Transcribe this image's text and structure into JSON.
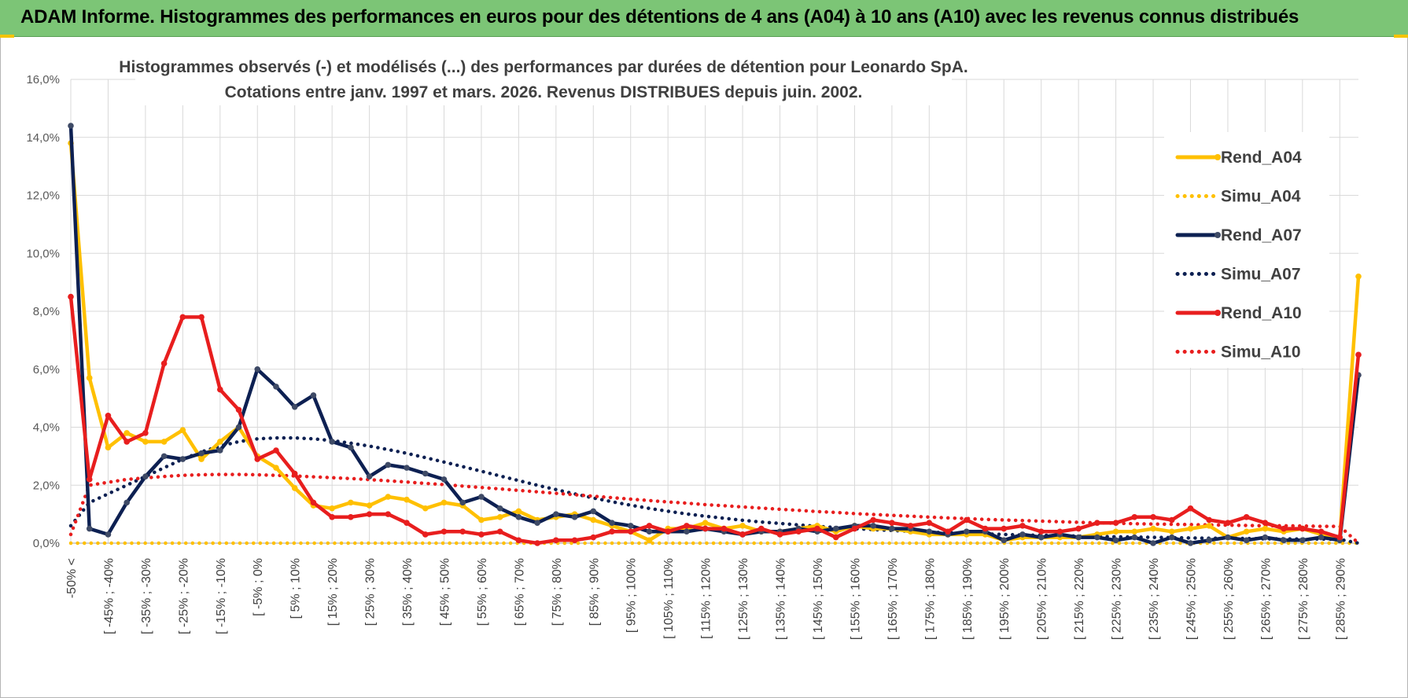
{
  "banner": {
    "title": "ADAM Informe. Histogrammes des performances en euros pour des détentions de 4 ans (A04) à 10 ans (A10) avec les revenus connus distribués"
  },
  "chart_data": {
    "type": "line",
    "title": [
      "Histogrammes observés (-) et modélisés (...) des performances par durées de détention pour Leonardo SpA.",
      "Cotations entre janv. 1997 et mars. 2026. Revenus DISTRIBUES depuis juin. 2002."
    ],
    "xlabel": "",
    "ylabel": "",
    "ylim": [
      0,
      16
    ],
    "y_ticks": [
      "0,0%",
      "2,0%",
      "4,0%",
      "6,0%",
      "8,0%",
      "10,0%",
      "12,0%",
      "14,0%",
      "16,0%"
    ],
    "grid": true,
    "legend_position": "top-right",
    "x_labels_shown": [
      "-50% <",
      "[ -45% ; -40%",
      "[ -35% ; -30%",
      "[ -25% ; -20%",
      "[ -15% ; -10%",
      "[ -5% ; 0%",
      "[ 5% ; 10%",
      "[ 15% ; 20%",
      "[ 25% ; 30%",
      "[ 35% ; 40%",
      "[ 45% ; 50%",
      "[ 55% ; 60%",
      "[ 65% ; 70%",
      "[ 75% ; 80%",
      "[ 85% ; 90%",
      "[ 95% ; 100%",
      "[ 105% ; 110%",
      "[ 115% ; 120%",
      "[ 125% ; 130%",
      "[ 135% ; 140%",
      "[ 145% ; 150%",
      "[ 155% ; 160%",
      "[ 165% ; 170%",
      "[ 175% ; 180%",
      "[ 185% ; 190%",
      "[ 195% ; 200%",
      "[ 205% ; 210%",
      "[ 215% ; 220%",
      "[ 225% ; 230%",
      "[ 235% ; 240%",
      "[ 245% ; 250%",
      "[ 255% ; 260%",
      "[ 265% ; 270%",
      "[ 275% ; 280%",
      "[ 285% ; 290%"
    ],
    "series": [
      {
        "name": "Rend_A04",
        "style": "solid",
        "color": "#ffc000",
        "marker": true,
        "values": [
          13.8,
          5.7,
          3.3,
          3.8,
          3.5,
          3.5,
          3.9,
          2.9,
          3.5,
          4.0,
          3.0,
          2.6,
          1.9,
          1.3,
          1.2,
          1.4,
          1.3,
          1.6,
          1.5,
          1.2,
          1.4,
          1.3,
          0.8,
          0.9,
          1.1,
          0.8,
          0.9,
          1.0,
          0.8,
          0.6,
          0.4,
          0.1,
          0.5,
          0.5,
          0.7,
          0.5,
          0.6,
          0.4,
          0.4,
          0.5,
          0.6,
          0.4,
          0.6,
          0.5,
          0.5,
          0.4,
          0.3,
          0.3,
          0.3,
          0.3,
          0.1,
          0.2,
          0.2,
          0.2,
          0.2,
          0.3,
          0.4,
          0.4,
          0.5,
          0.4,
          0.5,
          0.6,
          0.2,
          0.4,
          0.5,
          0.4,
          0.5,
          0.3,
          0.2,
          9.2
        ]
      },
      {
        "name": "Simu_A04",
        "style": "dotted",
        "color": "#ffc000",
        "marker": false,
        "values": [
          0.0,
          0.0,
          0.0,
          0.0,
          0.0,
          0.0,
          0.0,
          0.0,
          0.0,
          0.0,
          0.0,
          0.0,
          0.0,
          0.0,
          0.0,
          0.0,
          0.0,
          0.0,
          0.0,
          0.0,
          0.0,
          0.0,
          0.0,
          0.0,
          0.0,
          0.0,
          0.0,
          0.0,
          0.0,
          0.0,
          0.0,
          0.0,
          0.0,
          0.0,
          0.0,
          0.0,
          0.0,
          0.0,
          0.0,
          0.0,
          0.0,
          0.0,
          0.0,
          0.0,
          0.0,
          0.0,
          0.0,
          0.0,
          0.0,
          0.0,
          0.0,
          0.0,
          0.0,
          0.0,
          0.0,
          0.0,
          0.0,
          0.0,
          0.0,
          0.0,
          0.0,
          0.0,
          0.0,
          0.0,
          0.0,
          0.0,
          0.0,
          0.0,
          0.0,
          0.0
        ]
      },
      {
        "name": "Rend_A07",
        "style": "solid",
        "color": "#0d2052",
        "marker": true,
        "values": [
          14.4,
          0.5,
          0.3,
          1.4,
          2.3,
          3.0,
          2.9,
          3.1,
          3.2,
          4.0,
          6.0,
          5.4,
          4.7,
          5.1,
          3.5,
          3.3,
          2.3,
          2.7,
          2.6,
          2.4,
          2.2,
          1.4,
          1.6,
          1.2,
          0.9,
          0.7,
          1.0,
          0.9,
          1.1,
          0.7,
          0.6,
          0.4,
          0.4,
          0.4,
          0.5,
          0.4,
          0.3,
          0.4,
          0.4,
          0.5,
          0.4,
          0.5,
          0.6,
          0.6,
          0.5,
          0.5,
          0.4,
          0.3,
          0.4,
          0.4,
          0.1,
          0.3,
          0.2,
          0.3,
          0.2,
          0.2,
          0.1,
          0.2,
          0.0,
          0.2,
          0.0,
          0.1,
          0.2,
          0.1,
          0.2,
          0.1,
          0.1,
          0.2,
          0.1,
          5.8
        ]
      },
      {
        "name": "Simu_A07",
        "style": "dotted",
        "color": "#0d2052",
        "marker": false,
        "values": [
          0.6,
          1.4,
          1.7,
          2.0,
          2.3,
          2.6,
          2.9,
          3.15,
          3.35,
          3.5,
          3.6,
          3.63,
          3.63,
          3.6,
          3.54,
          3.45,
          3.35,
          3.23,
          3.1,
          2.95,
          2.8,
          2.64,
          2.48,
          2.32,
          2.16,
          2.0,
          1.85,
          1.7,
          1.56,
          1.43,
          1.31,
          1.2,
          1.1,
          1.01,
          0.93,
          0.86,
          0.79,
          0.73,
          0.68,
          0.63,
          0.58,
          0.54,
          0.5,
          0.47,
          0.44,
          0.41,
          0.38,
          0.36,
          0.34,
          0.32,
          0.3,
          0.28,
          0.27,
          0.26,
          0.24,
          0.23,
          0.22,
          0.21,
          0.2,
          0.19,
          0.18,
          0.17,
          0.17,
          0.16,
          0.15,
          0.15,
          0.14,
          0.14,
          0.13,
          0.0
        ]
      },
      {
        "name": "Rend_A10",
        "style": "solid",
        "color": "#e81e1e",
        "marker": true,
        "values": [
          8.5,
          2.2,
          4.4,
          3.5,
          3.8,
          6.2,
          7.8,
          7.8,
          5.3,
          4.6,
          2.9,
          3.2,
          2.4,
          1.4,
          0.9,
          0.9,
          1.0,
          1.0,
          0.7,
          0.3,
          0.4,
          0.4,
          0.3,
          0.4,
          0.1,
          0.0,
          0.1,
          0.1,
          0.2,
          0.4,
          0.4,
          0.6,
          0.4,
          0.6,
          0.5,
          0.5,
          0.3,
          0.5,
          0.3,
          0.4,
          0.5,
          0.2,
          0.5,
          0.8,
          0.7,
          0.6,
          0.7,
          0.4,
          0.8,
          0.5,
          0.5,
          0.6,
          0.4,
          0.4,
          0.5,
          0.7,
          0.7,
          0.9,
          0.9,
          0.8,
          1.2,
          0.8,
          0.7,
          0.9,
          0.7,
          0.5,
          0.5,
          0.4,
          0.2,
          6.5
        ]
      },
      {
        "name": "Simu_A10",
        "style": "dotted",
        "color": "#e81e1e",
        "marker": false,
        "values": [
          0.3,
          2.0,
          2.1,
          2.2,
          2.25,
          2.3,
          2.34,
          2.36,
          2.37,
          2.37,
          2.36,
          2.34,
          2.32,
          2.29,
          2.26,
          2.23,
          2.19,
          2.15,
          2.11,
          2.06,
          2.02,
          1.97,
          1.92,
          1.87,
          1.82,
          1.77,
          1.72,
          1.67,
          1.62,
          1.57,
          1.52,
          1.47,
          1.42,
          1.38,
          1.33,
          1.29,
          1.25,
          1.21,
          1.17,
          1.13,
          1.09,
          1.06,
          1.02,
          0.99,
          0.96,
          0.93,
          0.9,
          0.87,
          0.85,
          0.82,
          0.8,
          0.78,
          0.76,
          0.74,
          0.72,
          0.7,
          0.69,
          0.67,
          0.66,
          0.65,
          0.64,
          0.63,
          0.62,
          0.61,
          0.6,
          0.6,
          0.59,
          0.58,
          0.58,
          0.0
        ]
      }
    ]
  }
}
